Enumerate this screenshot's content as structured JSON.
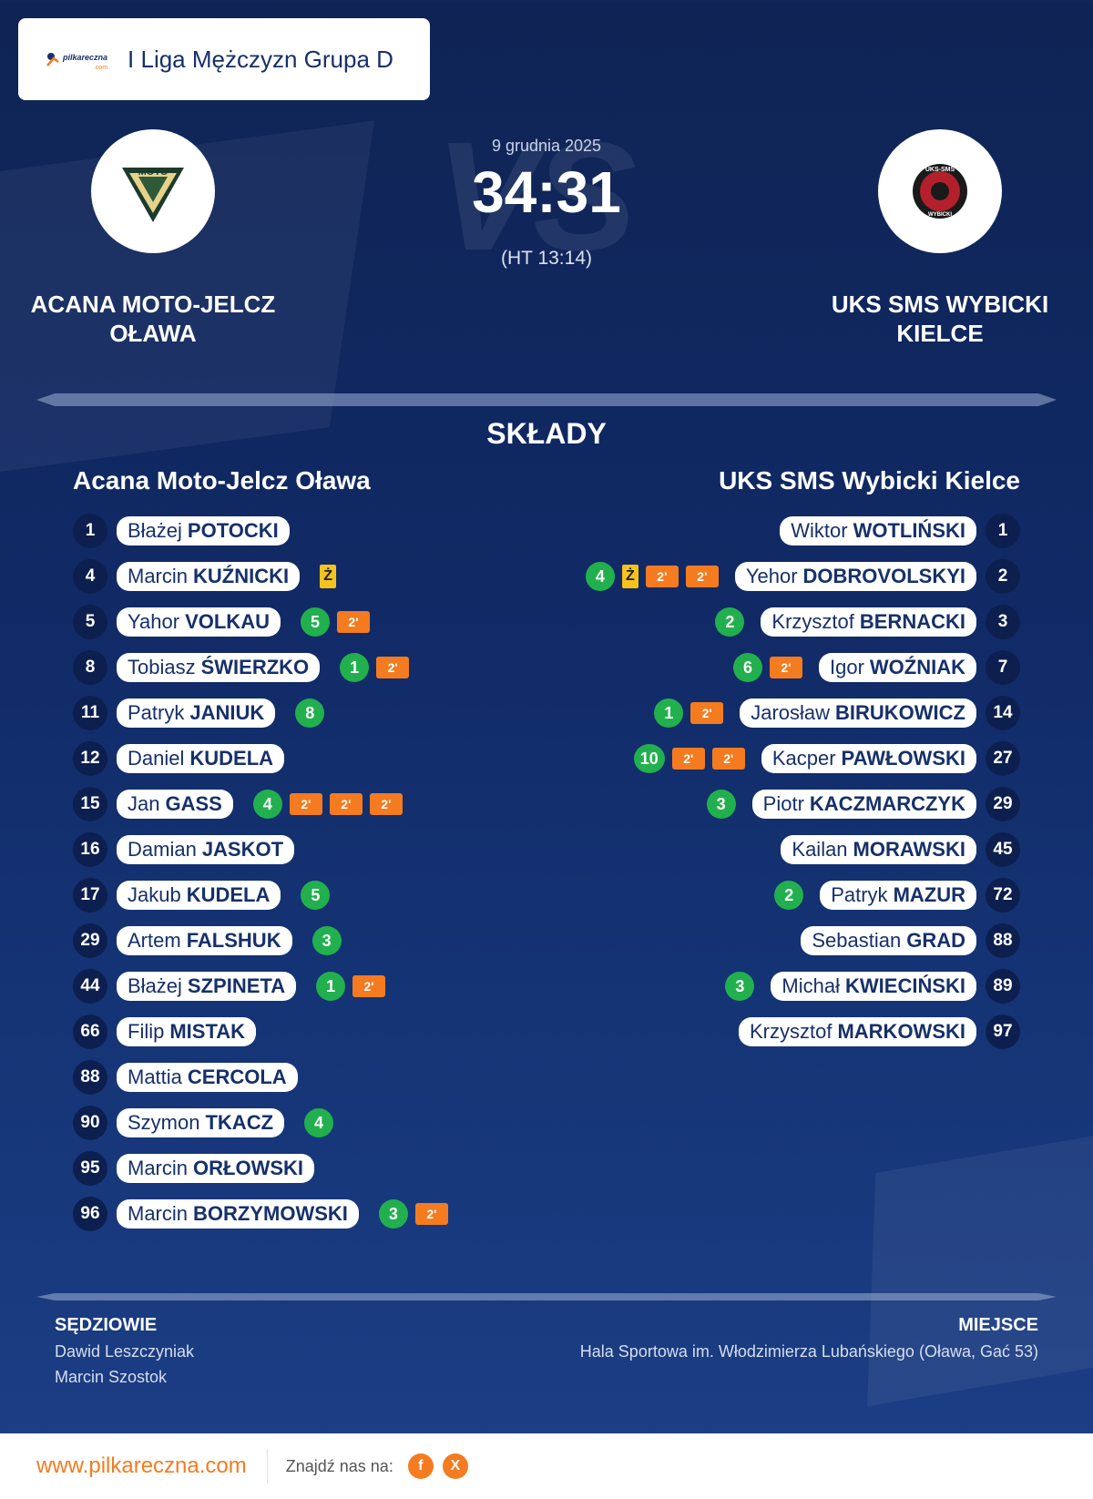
{
  "header": {
    "brand": "pilkareczna",
    "brand_suffix": ".com",
    "league": "I Liga Mężczyzn Grupa D"
  },
  "match": {
    "date": "9 grudnia 2025",
    "score": "34:31",
    "halftime": "(HT 13:14)",
    "vs_text": "VS",
    "home_name": "ACANA MOTO-JELCZ OŁAWA",
    "away_name": "UKS SMS WYBICKI KIELCE",
    "home_crest_text": "MOTO",
    "away_crest_text_top": "UKS-SMS",
    "away_crest_text_bottom": "WYBICKI"
  },
  "lineups": {
    "title": "SKŁADY",
    "home_title": "Acana Moto-Jelcz Oława",
    "away_title": "UKS SMS Wybicki Kielce",
    "home": [
      {
        "num": "1",
        "first": "Błażej",
        "last": "POTOCKI",
        "goals": "",
        "yellow": false,
        "susp": 0
      },
      {
        "num": "4",
        "first": "Marcin",
        "last": "KUŹNICKI",
        "goals": "",
        "yellow": true,
        "susp": 0
      },
      {
        "num": "5",
        "first": "Yahor",
        "last": "VOLKAU",
        "goals": "5",
        "yellow": false,
        "susp": 1
      },
      {
        "num": "8",
        "first": "Tobiasz",
        "last": "ŚWIERZKO",
        "goals": "1",
        "yellow": false,
        "susp": 1
      },
      {
        "num": "11",
        "first": "Patryk",
        "last": "JANIUK",
        "goals": "8",
        "yellow": false,
        "susp": 0
      },
      {
        "num": "12",
        "first": "Daniel",
        "last": "KUDELA",
        "goals": "",
        "yellow": false,
        "susp": 0
      },
      {
        "num": "15",
        "first": "Jan",
        "last": "GASS",
        "goals": "4",
        "yellow": false,
        "susp": 3
      },
      {
        "num": "16",
        "first": "Damian",
        "last": "JASKOT",
        "goals": "",
        "yellow": false,
        "susp": 0
      },
      {
        "num": "17",
        "first": "Jakub",
        "last": "KUDELA",
        "goals": "5",
        "yellow": false,
        "susp": 0
      },
      {
        "num": "29",
        "first": "Artem",
        "last": "FALSHUK",
        "goals": "3",
        "yellow": false,
        "susp": 0
      },
      {
        "num": "44",
        "first": "Błażej",
        "last": "SZPINETA",
        "goals": "1",
        "yellow": false,
        "susp": 1
      },
      {
        "num": "66",
        "first": "Filip",
        "last": "MISTAK",
        "goals": "",
        "yellow": false,
        "susp": 0
      },
      {
        "num": "88",
        "first": "Mattia",
        "last": "CERCOLA",
        "goals": "",
        "yellow": false,
        "susp": 0
      },
      {
        "num": "90",
        "first": "Szymon",
        "last": "TKACZ",
        "goals": "4",
        "yellow": false,
        "susp": 0
      },
      {
        "num": "95",
        "first": "Marcin",
        "last": "ORŁOWSKI",
        "goals": "",
        "yellow": false,
        "susp": 0
      },
      {
        "num": "96",
        "first": "Marcin",
        "last": "BORZYMOWSKI",
        "goals": "3",
        "yellow": false,
        "susp": 1
      }
    ],
    "away": [
      {
        "num": "1",
        "first": "Wiktor",
        "last": "WOTLIŃSKI",
        "goals": "",
        "yellow": false,
        "susp": 0
      },
      {
        "num": "2",
        "first": "Yehor",
        "last": "DOBROVOLSKYI",
        "goals": "4",
        "yellow": true,
        "susp": 2
      },
      {
        "num": "3",
        "first": "Krzysztof",
        "last": "BERNACKI",
        "goals": "2",
        "yellow": false,
        "susp": 0
      },
      {
        "num": "7",
        "first": "Igor",
        "last": "WOŹNIAK",
        "goals": "6",
        "yellow": false,
        "susp": 1
      },
      {
        "num": "14",
        "first": "Jarosław",
        "last": "BIRUKOWICZ",
        "goals": "1",
        "yellow": false,
        "susp": 1
      },
      {
        "num": "27",
        "first": "Kacper",
        "last": "PAWŁOWSKI",
        "goals": "10",
        "yellow": false,
        "susp": 2
      },
      {
        "num": "29",
        "first": "Piotr",
        "last": "KACZMARCZYK",
        "goals": "3",
        "yellow": false,
        "susp": 0
      },
      {
        "num": "45",
        "first": "Kailan",
        "last": "MORAWSKI",
        "goals": "",
        "yellow": false,
        "susp": 0
      },
      {
        "num": "72",
        "first": "Patryk",
        "last": "MAZUR",
        "goals": "2",
        "yellow": false,
        "susp": 0
      },
      {
        "num": "88",
        "first": "Sebastian",
        "last": "GRAD",
        "goals": "",
        "yellow": false,
        "susp": 0
      },
      {
        "num": "89",
        "first": "Michał",
        "last": "KWIECIŃSKI",
        "goals": "3",
        "yellow": false,
        "susp": 0
      },
      {
        "num": "97",
        "first": "Krzysztof",
        "last": "MARKOWSKI",
        "goals": "",
        "yellow": false,
        "susp": 0
      }
    ],
    "yellow_label": "Ż",
    "susp_label": "2'"
  },
  "officials": {
    "referees_label": "SĘDZIOWIE",
    "referees": [
      "Dawid Leszczyniak",
      "Marcin Szostok"
    ],
    "venue_label": "MIEJSCE",
    "venue": "Hala Sportowa im. Włodzimierza Lubańskiego (Oława, Gać 53)"
  },
  "footer": {
    "url": "www.pilkareczna.com",
    "find_us": "Znajdź nas na:",
    "facebook": "f",
    "x": "X"
  },
  "colors": {
    "accent": "#f47b20",
    "goal_green": "#22b04e",
    "yellow_card": "#f6c31c",
    "navy": "#16306b",
    "number_bg": "#0c1f4f"
  }
}
